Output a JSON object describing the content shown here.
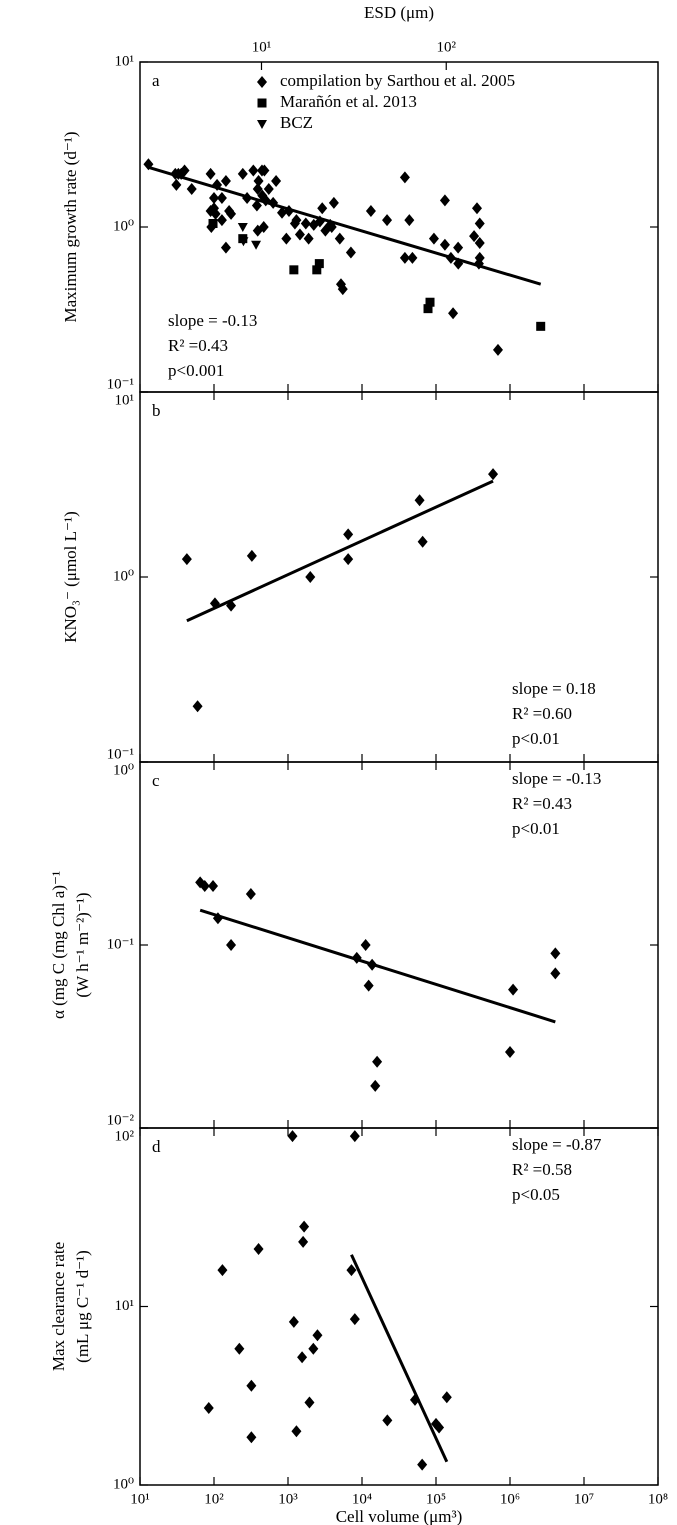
{
  "chart_data": [
    {
      "type": "scatter",
      "log_x": true,
      "log_y": true,
      "panel_label": "a",
      "ylabel": [
        "Maximum growth rate (d⁻¹)"
      ],
      "x2label": "ESD (μm)",
      "x2lim": [
        2.2,
        1400
      ],
      "x2ticks": [
        {
          "value": 10,
          "label": "10¹"
        },
        {
          "value": 100,
          "label": "10²"
        }
      ],
      "xlim": [
        10,
        100000000
      ],
      "xticks": [
        10,
        100,
        1000,
        10000,
        100000,
        1000000,
        10000000,
        100000000
      ],
      "ylim": [
        0.1,
        10
      ],
      "yticks": [
        {
          "value": 0.1,
          "label": "10⁻¹"
        },
        {
          "value": 1,
          "label": "10⁰"
        },
        {
          "value": 10,
          "label": "10¹"
        }
      ],
      "legend": "upper right",
      "series": [
        {
          "name": "compilation by Sarthou et al. 2005",
          "marker": "diamond",
          "color": "#000000",
          "x": [
            13,
            30,
            31,
            33,
            36,
            40,
            50,
            90,
            100,
            92,
            100,
            105,
            110,
            128,
            145,
            145,
            90,
            160,
            170,
            128,
            245,
            280,
            340,
            390,
            380,
            400,
            445,
            480,
            450,
            500,
            550,
            390,
            470,
            630,
            690,
            830,
            1030,
            950,
            1240,
            1300,
            1450,
            1740,
            1900,
            2230,
            2700,
            2900,
            3200,
            3720,
            4170,
            3900,
            5010,
            5200,
            5500,
            7080,
            13200,
            21800,
            38000,
            38000,
            43600,
            48000,
            93800,
            132000,
            132000,
            159000,
            170000,
            199000,
            200000,
            327000,
            358000,
            390000,
            390000,
            390000,
            380000,
            688000
          ],
          "values": [
            2.4,
            2.1,
            1.8,
            2.1,
            2.1,
            2.2,
            1.7,
            2.1,
            1.5,
            1.0,
            1.3,
            1.2,
            1.8,
            1.5,
            0.75,
            1.9,
            1.25,
            1.25,
            1.2,
            1.1,
            2.1,
            1.5,
            2.2,
            1.7,
            1.35,
            1.9,
            2.2,
            2.2,
            1.55,
            1.45,
            1.7,
            0.95,
            1.0,
            1.4,
            1.9,
            1.22,
            1.25,
            0.85,
            1.05,
            1.1,
            0.9,
            1.05,
            0.85,
            1.03,
            1.08,
            1.3,
            0.95,
            1.03,
            1.4,
            1.0,
            0.85,
            0.45,
            0.42,
            0.7,
            1.25,
            1.1,
            2.0,
            0.65,
            1.1,
            0.65,
            0.85,
            1.45,
            0.78,
            0.65,
            0.3,
            0.75,
            0.6,
            0.88,
            1.3,
            1.05,
            0.8,
            0.65,
            0.6,
            0.18
          ]
        },
        {
          "name": "Marañón et al. 2013",
          "marker": "square",
          "color": "#000000",
          "x": [
            97,
            245,
            1200,
            2450,
            2650,
            78000,
            83000,
            2600000
          ],
          "values": [
            1.05,
            0.85,
            0.55,
            0.55,
            0.6,
            0.32,
            0.35,
            0.25
          ]
        },
        {
          "name": "BCZ",
          "marker": "triangle_down",
          "color": "#000000",
          "x": [
            245,
            250,
            370
          ],
          "values": [
            1.0,
            0.82,
            0.78
          ]
        }
      ],
      "fit": {
        "x": [
          13,
          2600000
        ],
        "values": [
          2.3,
          0.45
        ],
        "color": "#000000"
      },
      "annotations": [
        "slope = -0.13",
        "R² =0.43",
        "p<0.001"
      ],
      "annotation_loc": "lower left"
    },
    {
      "type": "scatter",
      "log_x": true,
      "log_y": true,
      "panel_label": "b",
      "ylabel": [
        "KNO₃⁻ (μmol L⁻¹)"
      ],
      "xlim": [
        10,
        100000000
      ],
      "xticks": [
        10,
        100,
        1000,
        10000,
        100000,
        1000000,
        10000000,
        100000000
      ],
      "ylim": [
        0.1,
        10
      ],
      "yticks": [
        {
          "value": 0.1,
          "label": "10⁻¹"
        },
        {
          "value": 1,
          "label": "10⁰"
        },
        {
          "value": 10,
          "label": "10¹"
        }
      ],
      "series": [
        {
          "marker": "diamond",
          "color": "#000000",
          "x": [
            43,
            60,
            103,
            170,
            325,
            2000,
            6500,
            6500,
            60000,
            66000,
            590000
          ],
          "values": [
            1.25,
            0.2,
            0.72,
            0.7,
            1.3,
            1.0,
            1.7,
            1.25,
            2.6,
            1.55,
            3.6
          ]
        }
      ],
      "fit": {
        "x": [
          43,
          590000
        ],
        "values": [
          0.58,
          3.3
        ],
        "color": "#000000"
      },
      "annotations": [
        "slope = 0.18",
        "R² =0.60",
        "p<0.01"
      ],
      "annotation_loc": "lower right"
    },
    {
      "type": "scatter",
      "log_x": true,
      "log_y": true,
      "panel_label": "c",
      "ylabel": [
        "α (mg C (mg Chl a)⁻¹",
        "(W h⁻¹ m⁻²)⁻¹)"
      ],
      "xlim": [
        10,
        100000000
      ],
      "xticks": [
        10,
        100,
        1000,
        10000,
        100000,
        1000000,
        10000000,
        100000000
      ],
      "ylim": [
        0.01,
        1
      ],
      "yticks": [
        {
          "value": 0.01,
          "label": "10⁻²"
        },
        {
          "value": 0.1,
          "label": "10⁻¹"
        },
        {
          "value": 1,
          "label": "10⁰"
        }
      ],
      "series": [
        {
          "marker": "diamond",
          "color": "#000000",
          "x": [
            65,
            75,
            97,
            113,
            170,
            315,
            8500,
            11200,
            12300,
            13700,
            15100,
            16000,
            1000000,
            1100000,
            4100000,
            4100000
          ],
          "values": [
            0.22,
            0.21,
            0.21,
            0.14,
            0.1,
            0.19,
            0.085,
            0.1,
            0.06,
            0.078,
            0.017,
            0.023,
            0.026,
            0.057,
            0.09,
            0.07
          ]
        }
      ],
      "fit": {
        "x": [
          65,
          4100000
        ],
        "values": [
          0.155,
          0.038
        ],
        "color": "#000000"
      },
      "annotations": [
        "slope = -0.13",
        "R² =0.43",
        "p<0.01"
      ],
      "annotation_loc": "upper right"
    },
    {
      "type": "scatter",
      "log_x": true,
      "log_y": true,
      "panel_label": "d",
      "ylabel": [
        "Max clearance rate",
        "(mL μg C⁻¹ d⁻¹)"
      ],
      "xlabel": "Cell volume (μm³)",
      "xlim": [
        10,
        100000000
      ],
      "xticks": [
        {
          "value": 10,
          "label": "10¹"
        },
        {
          "value": 100,
          "label": "10²"
        },
        {
          "value": 1000,
          "label": "10³"
        },
        {
          "value": 10000,
          "label": "10⁴"
        },
        {
          "value": 100000,
          "label": "10⁵"
        },
        {
          "value": 1000000,
          "label": "10⁶"
        },
        {
          "value": 10000000,
          "label": "10⁷"
        },
        {
          "value": 100000000,
          "label": "10⁸"
        }
      ],
      "ylim": [
        1,
        100
      ],
      "yticks": [
        {
          "value": 1,
          "label": "10⁰"
        },
        {
          "value": 10,
          "label": "10¹"
        },
        {
          "value": 100,
          "label": "10²"
        }
      ],
      "series": [
        {
          "marker": "diamond",
          "color": "#000000",
          "x": [
            85,
            130,
            220,
            320,
            320,
            400,
            1200,
            1150,
            1300,
            1550,
            1600,
            1650,
            1950,
            2200,
            2500,
            7200,
            8000,
            8000,
            22000,
            52000,
            65000,
            100000,
            110000,
            140000
          ],
          "values": [
            2.7,
            16,
            5.8,
            3.6,
            1.85,
            21,
            8.2,
            90,
            2.0,
            5.2,
            23,
            28,
            2.9,
            5.8,
            6.9,
            16,
            8.5,
            90,
            2.3,
            3.0,
            1.3,
            2.2,
            2.1,
            3.1
          ]
        }
      ],
      "fit": {
        "x": [
          7200,
          140000
        ],
        "values": [
          19.5,
          1.35
        ],
        "color": "#000000"
      },
      "annotations": [
        "slope = -0.87",
        "R² =0.58",
        "p<0.05"
      ],
      "annotation_loc": "upper right"
    }
  ]
}
